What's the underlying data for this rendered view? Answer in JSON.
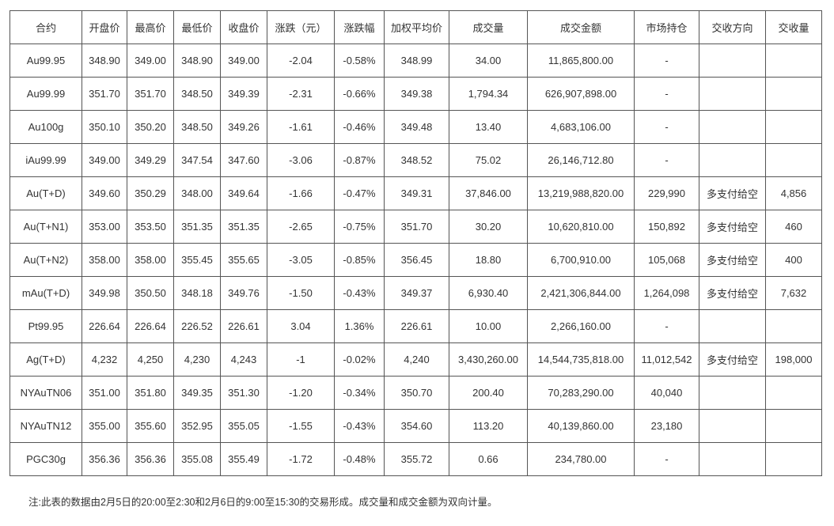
{
  "table": {
    "header": [
      "合约",
      "开盘价",
      "最高价",
      "最低价",
      "收盘价",
      "涨跌（元）",
      "涨跌幅",
      "加权平均价",
      "成交量",
      "成交金额",
      "市场持仓",
      "交收方向",
      "交收量"
    ],
    "rows": [
      [
        "Au99.95",
        "348.90",
        "349.00",
        "348.90",
        "349.00",
        "-2.04",
        "-0.58%",
        "348.99",
        "34.00",
        "11,865,800.00",
        "-",
        null,
        null
      ],
      [
        "Au99.99",
        "351.70",
        "351.70",
        "348.50",
        "349.39",
        "-2.31",
        "-0.66%",
        "349.38",
        "1,794.34",
        "626,907,898.00",
        "-",
        null,
        null
      ],
      [
        "Au100g",
        "350.10",
        "350.20",
        "348.50",
        "349.26",
        "-1.61",
        "-0.46%",
        "349.48",
        "13.40",
        "4,683,106.00",
        "-",
        null,
        null
      ],
      [
        "iAu99.99",
        "349.00",
        "349.29",
        "347.54",
        "347.60",
        "-3.06",
        "-0.87%",
        "348.52",
        "75.02",
        "26,146,712.80",
        "-",
        null,
        null
      ],
      [
        "Au(T+D)",
        "349.60",
        "350.29",
        "348.00",
        "349.64",
        "-1.66",
        "-0.47%",
        "349.31",
        "37,846.00",
        "13,219,988,820.00",
        "229,990",
        "多支付给空",
        "4,856"
      ],
      [
        "Au(T+N1)",
        "353.00",
        "353.50",
        "351.35",
        "351.35",
        "-2.65",
        "-0.75%",
        "351.70",
        "30.20",
        "10,620,810.00",
        "150,892",
        "多支付给空",
        "460"
      ],
      [
        "Au(T+N2)",
        "358.00",
        "358.00",
        "355.45",
        "355.65",
        "-3.05",
        "-0.85%",
        "356.45",
        "18.80",
        "6,700,910.00",
        "105,068",
        "多支付给空",
        "400"
      ],
      [
        "mAu(T+D)",
        "349.98",
        "350.50",
        "348.18",
        "349.76",
        "-1.50",
        "-0.43%",
        "349.37",
        "6,930.40",
        "2,421,306,844.00",
        "1,264,098",
        "多支付给空",
        "7,632"
      ],
      [
        "Pt99.95",
        "226.64",
        "226.64",
        "226.52",
        "226.61",
        "3.04",
        "1.36%",
        "226.61",
        "10.00",
        "2,266,160.00",
        "-",
        null,
        null
      ],
      [
        "Ag(T+D)",
        "4,232",
        "4,250",
        "4,230",
        "4,243",
        "-1",
        "-0.02%",
        "4,240",
        "3,430,260.00",
        "14,544,735,818.00",
        "11,012,542",
        "多支付给空",
        "198,000"
      ],
      [
        "NYAuTN06",
        "351.00",
        "351.80",
        "349.35",
        "351.30",
        "-1.20",
        "-0.34%",
        "350.70",
        "200.40",
        "70,283,290.00",
        "40,040",
        null,
        null
      ],
      [
        "NYAuTN12",
        "355.00",
        "355.60",
        "352.95",
        "355.05",
        "-1.55",
        "-0.43%",
        "354.60",
        "113.20",
        "40,139,860.00",
        "23,180",
        null,
        null
      ],
      [
        "PGC30g",
        "356.36",
        "356.36",
        "355.08",
        "355.49",
        "-1.72",
        "-0.48%",
        "355.72",
        "0.66",
        "234,780.00",
        "-",
        null,
        null
      ]
    ]
  },
  "note": "注:此表的数据由2月5日的20:00至2:30和2月6日的9:00至15:30的交易形成。成交量和成交金额为双向计量。"
}
